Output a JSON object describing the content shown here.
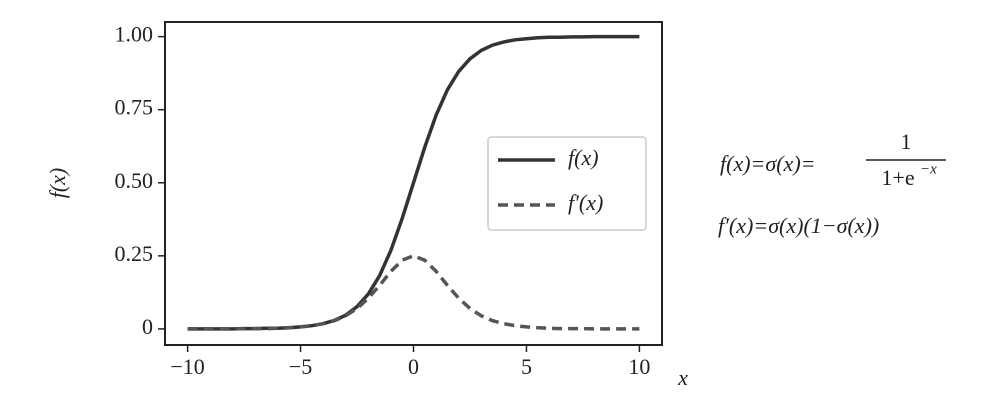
{
  "chart_data": {
    "type": "line",
    "x_label": "x",
    "y_label": "f(x)",
    "x": [
      -10,
      -9.5,
      -9,
      -8.5,
      -8,
      -7.5,
      -7,
      -6.5,
      -6,
      -5.5,
      -5,
      -4.5,
      -4,
      -3.5,
      -3,
      -2.5,
      -2,
      -1.5,
      -1,
      -0.5,
      0,
      0.5,
      1,
      1.5,
      2,
      2.5,
      3,
      3.5,
      4,
      4.5,
      5,
      5.5,
      6,
      6.5,
      7,
      7.5,
      8,
      8.5,
      9,
      9.5,
      10
    ],
    "series": [
      {
        "name": "f(x)",
        "color": "#333333",
        "dash": "solid",
        "values": [
          0,
          0,
          0,
          0,
          0,
          0.001,
          0.001,
          0.002,
          0.002,
          0.004,
          0.007,
          0.011,
          0.018,
          0.029,
          0.047,
          0.076,
          0.119,
          0.182,
          0.269,
          0.378,
          0.5,
          0.622,
          0.731,
          0.818,
          0.881,
          0.924,
          0.953,
          0.971,
          0.982,
          0.989,
          0.993,
          0.996,
          0.998,
          0.998,
          0.999,
          0.999,
          1,
          1,
          1,
          1,
          1
        ]
      },
      {
        "name": "f′(x)",
        "color": "#555555",
        "dash": "dashed",
        "values": [
          0,
          0,
          0,
          0,
          0,
          0.001,
          0.001,
          0.001,
          0.002,
          0.004,
          0.007,
          0.011,
          0.018,
          0.028,
          0.045,
          0.07,
          0.105,
          0.149,
          0.197,
          0.235,
          0.25,
          0.235,
          0.197,
          0.149,
          0.105,
          0.07,
          0.045,
          0.028,
          0.018,
          0.011,
          0.007,
          0.004,
          0.002,
          0.001,
          0.001,
          0.001,
          0,
          0,
          0,
          0,
          0
        ]
      }
    ],
    "xlim": [
      -11,
      11
    ],
    "ylim": [
      -0.055,
      1.05
    ],
    "xticks": [
      {
        "value": -10,
        "label": "−10"
      },
      {
        "value": -5,
        "label": "−5"
      },
      0,
      5,
      10
    ],
    "yticks": [
      0,
      0.25,
      {
        "value": 0.5,
        "label": "0.50"
      },
      0.75,
      {
        "value": 1,
        "label": "1.00"
      }
    ],
    "grid": false,
    "legend": "center-right",
    "formula": {
      "line1_left": "f(x)=σ(x)=",
      "numerator": "1",
      "denominator": "1+e",
      "exponent": "−x",
      "line2": "f′(x)=σ(x)(1−σ(x))"
    }
  }
}
